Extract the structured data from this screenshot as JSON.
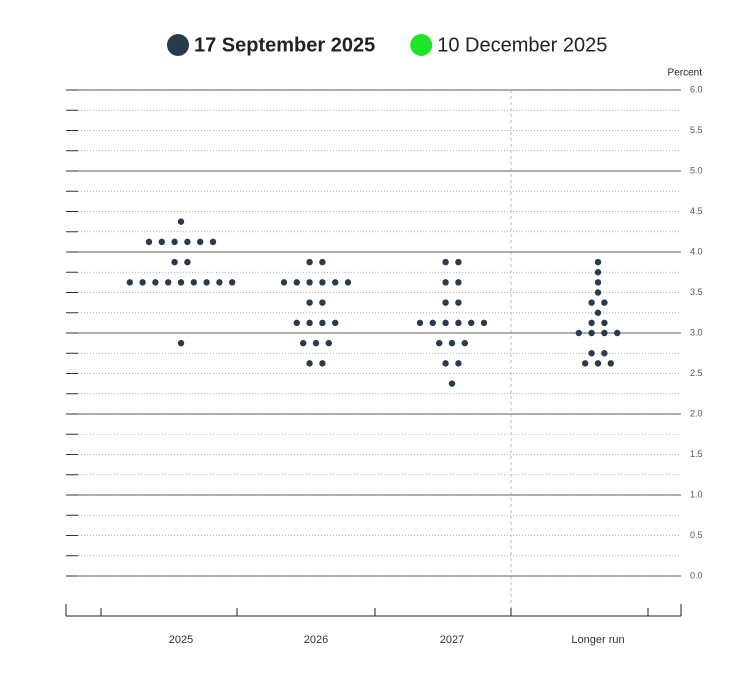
{
  "chart_data": {
    "type": "dot-plot",
    "y_label": "Percent",
    "categories": [
      "2025",
      "2026",
      "2027",
      "Longer run"
    ],
    "series": [
      {
        "name": "17 September 2025",
        "color": "#293a4c",
        "visible": true,
        "values": [
          [
            4.375,
            4.125,
            4.125,
            4.125,
            4.125,
            4.125,
            4.125,
            3.875,
            3.875,
            3.625,
            3.625,
            3.625,
            3.625,
            3.625,
            3.625,
            3.625,
            3.625,
            3.625,
            2.875
          ],
          [
            3.875,
            3.875,
            3.625,
            3.625,
            3.625,
            3.625,
            3.625,
            3.625,
            3.375,
            3.375,
            3.125,
            3.125,
            3.125,
            3.125,
            2.875,
            2.875,
            2.875,
            2.625,
            2.625
          ],
          [
            3.875,
            3.875,
            3.625,
            3.625,
            3.375,
            3.375,
            3.125,
            3.125,
            3.125,
            3.125,
            3.125,
            3.125,
            2.875,
            2.875,
            2.875,
            2.625,
            2.625,
            2.375
          ],
          [
            3.875,
            3.75,
            3.625,
            3.5,
            3.375,
            3.375,
            3.25,
            3.125,
            3.125,
            3.0,
            3.0,
            3.0,
            3.0,
            2.75,
            2.75,
            2.625,
            2.625,
            2.625
          ]
        ]
      },
      {
        "name": "10 December 2025",
        "color": "#1ee32a",
        "visible": false
      }
    ],
    "ylim": [
      0,
      6
    ],
    "yticks": [
      {
        "value": 0,
        "label": "0.0"
      },
      {
        "value": 0.5,
        "label": "0.5"
      },
      {
        "value": 1,
        "label": "1.0"
      },
      {
        "value": 1.5,
        "label": "1.5"
      },
      {
        "value": 2,
        "label": "2.0"
      },
      {
        "value": 2.5,
        "label": "2.5"
      },
      {
        "value": 3,
        "label": "3.0"
      },
      {
        "value": 3.5,
        "label": "3.5"
      },
      {
        "value": 4,
        "label": "4.0"
      },
      {
        "value": 4.5,
        "label": "4.5"
      },
      {
        "value": 5,
        "label": "5.0"
      },
      {
        "value": 5.5,
        "label": "5.5"
      },
      {
        "value": 6,
        "label": "6.0"
      }
    ],
    "minor_tick_step": 0.25,
    "grid": true
  }
}
